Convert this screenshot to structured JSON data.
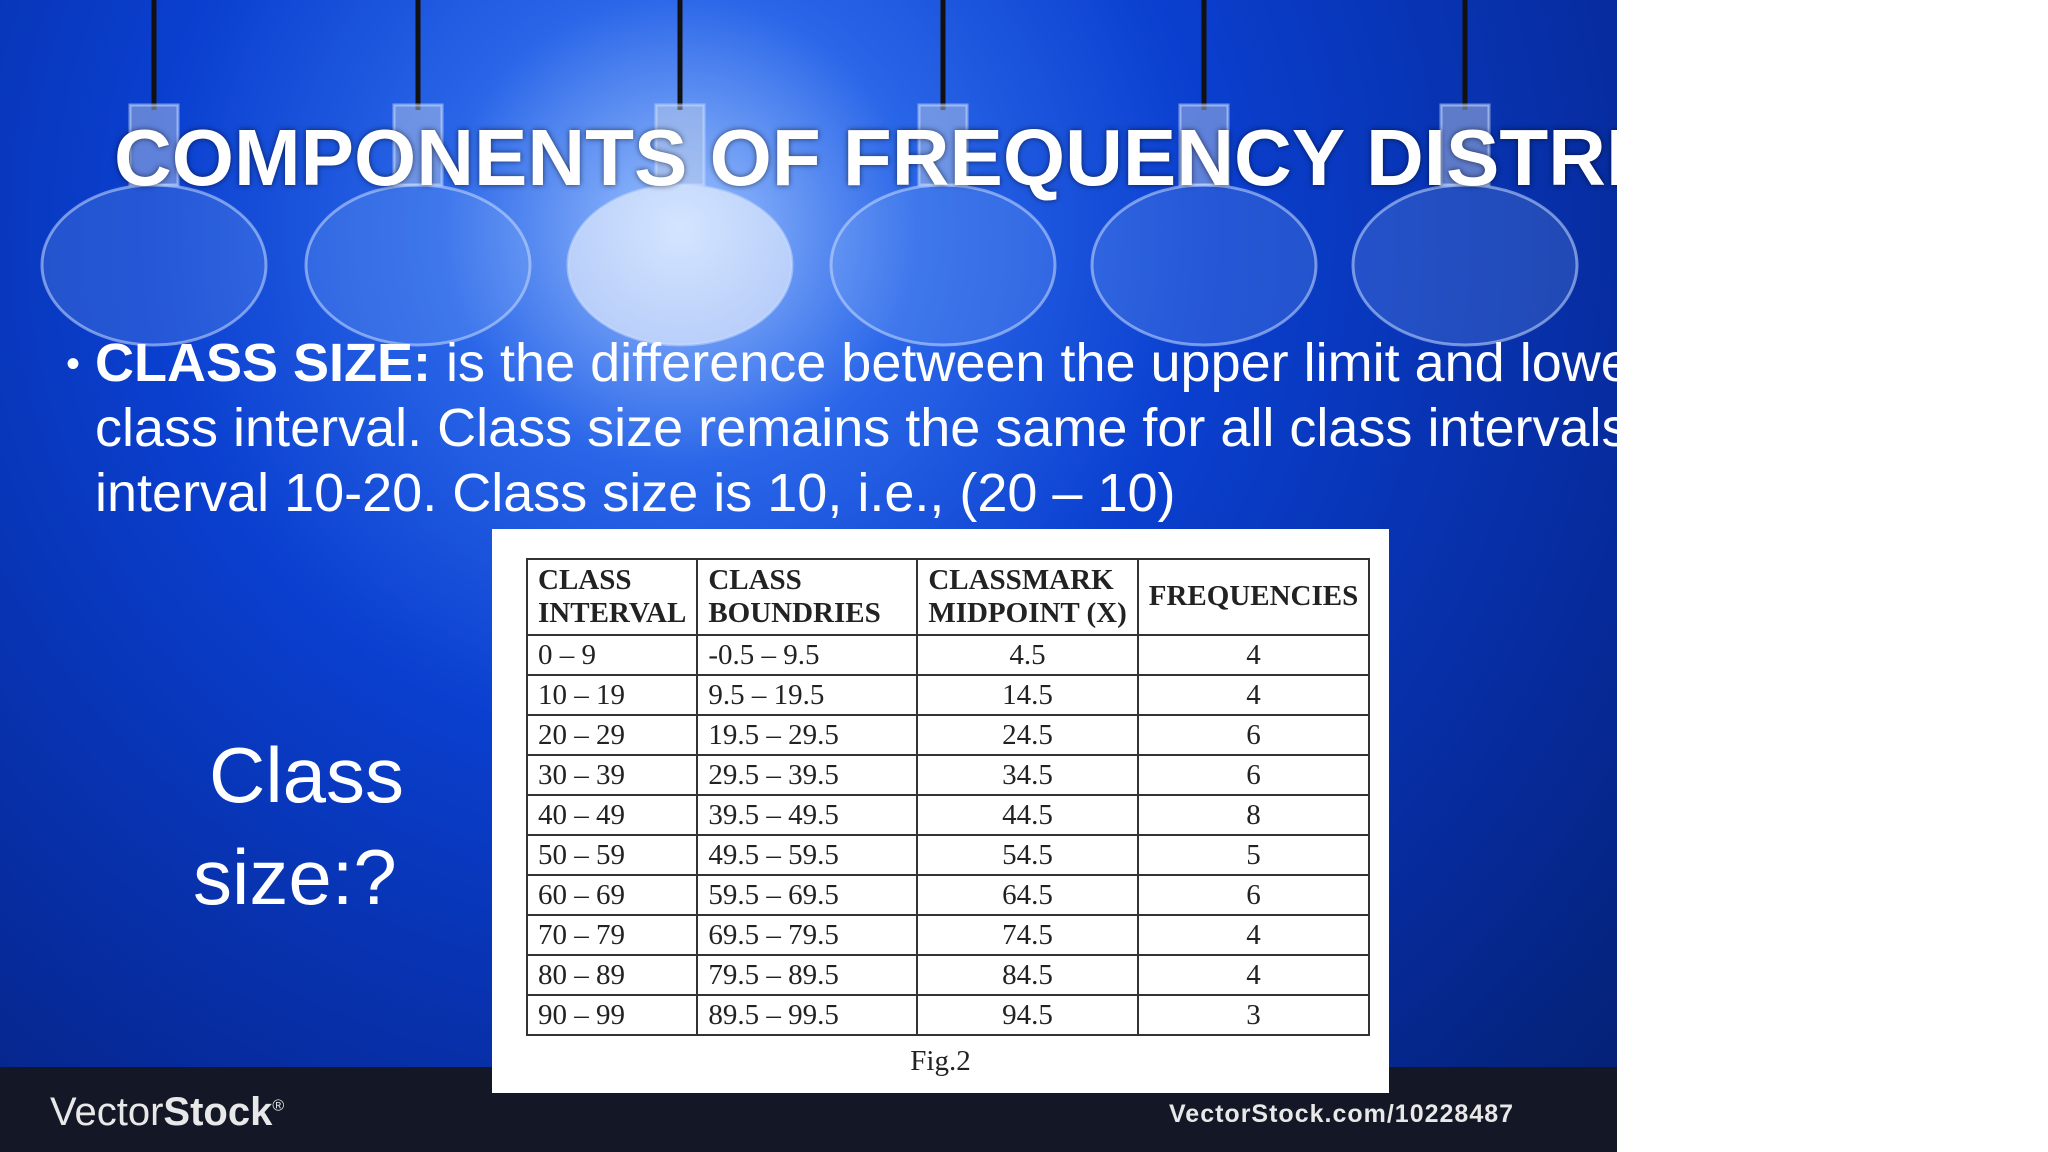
{
  "slide": {
    "title": "COMPONENTS OF FREQUENCY DISTRIBUTION",
    "bullet": {
      "label": "CLASS SIZE:",
      "lines": [
        "is the difference between the upper limit and lower limit of a",
        "class interval. Class size remains the same for all class intervals. For example, class",
        "interval 10-20. Class size is 10, i.e., (20 – 10)"
      ]
    },
    "side_text": [
      "Class",
      "size:?"
    ],
    "table": {
      "headers": [
        [
          "CLASS",
          "INTERVAL"
        ],
        [
          "CLASS",
          "BOUNDRIES"
        ],
        [
          "CLASSMARK",
          "MIDPOINT (X)"
        ],
        [
          "FREQUENCIES"
        ]
      ],
      "rows": [
        [
          "0 – 9",
          "-0.5 – 9.5",
          "4.5",
          "4"
        ],
        [
          "10 – 19",
          "9.5 – 19.5",
          "14.5",
          "4"
        ],
        [
          "20 – 29",
          "19.5 – 29.5",
          "24.5",
          "6"
        ],
        [
          "30 – 39",
          "29.5 – 39.5",
          "34.5",
          "6"
        ],
        [
          "40 – 49",
          "39.5 – 49.5",
          "44.5",
          "8"
        ],
        [
          "50 – 59",
          "49.5 – 59.5",
          "54.5",
          "5"
        ],
        [
          "60 – 69",
          "59.5 – 69.5",
          "64.5",
          "6"
        ],
        [
          "70 – 79",
          "69.5 – 79.5",
          "74.5",
          "4"
        ],
        [
          "80 – 89",
          "79.5 – 89.5",
          "84.5",
          "4"
        ],
        [
          "90 – 99",
          "89.5 – 99.5",
          "94.5",
          "3"
        ]
      ],
      "caption": "Fig.2"
    },
    "watermark": {
      "logo_light": "Vector",
      "logo_bold": "Stock",
      "logo_mark": "®",
      "url": "VectorStock.com/10228487"
    }
  }
}
